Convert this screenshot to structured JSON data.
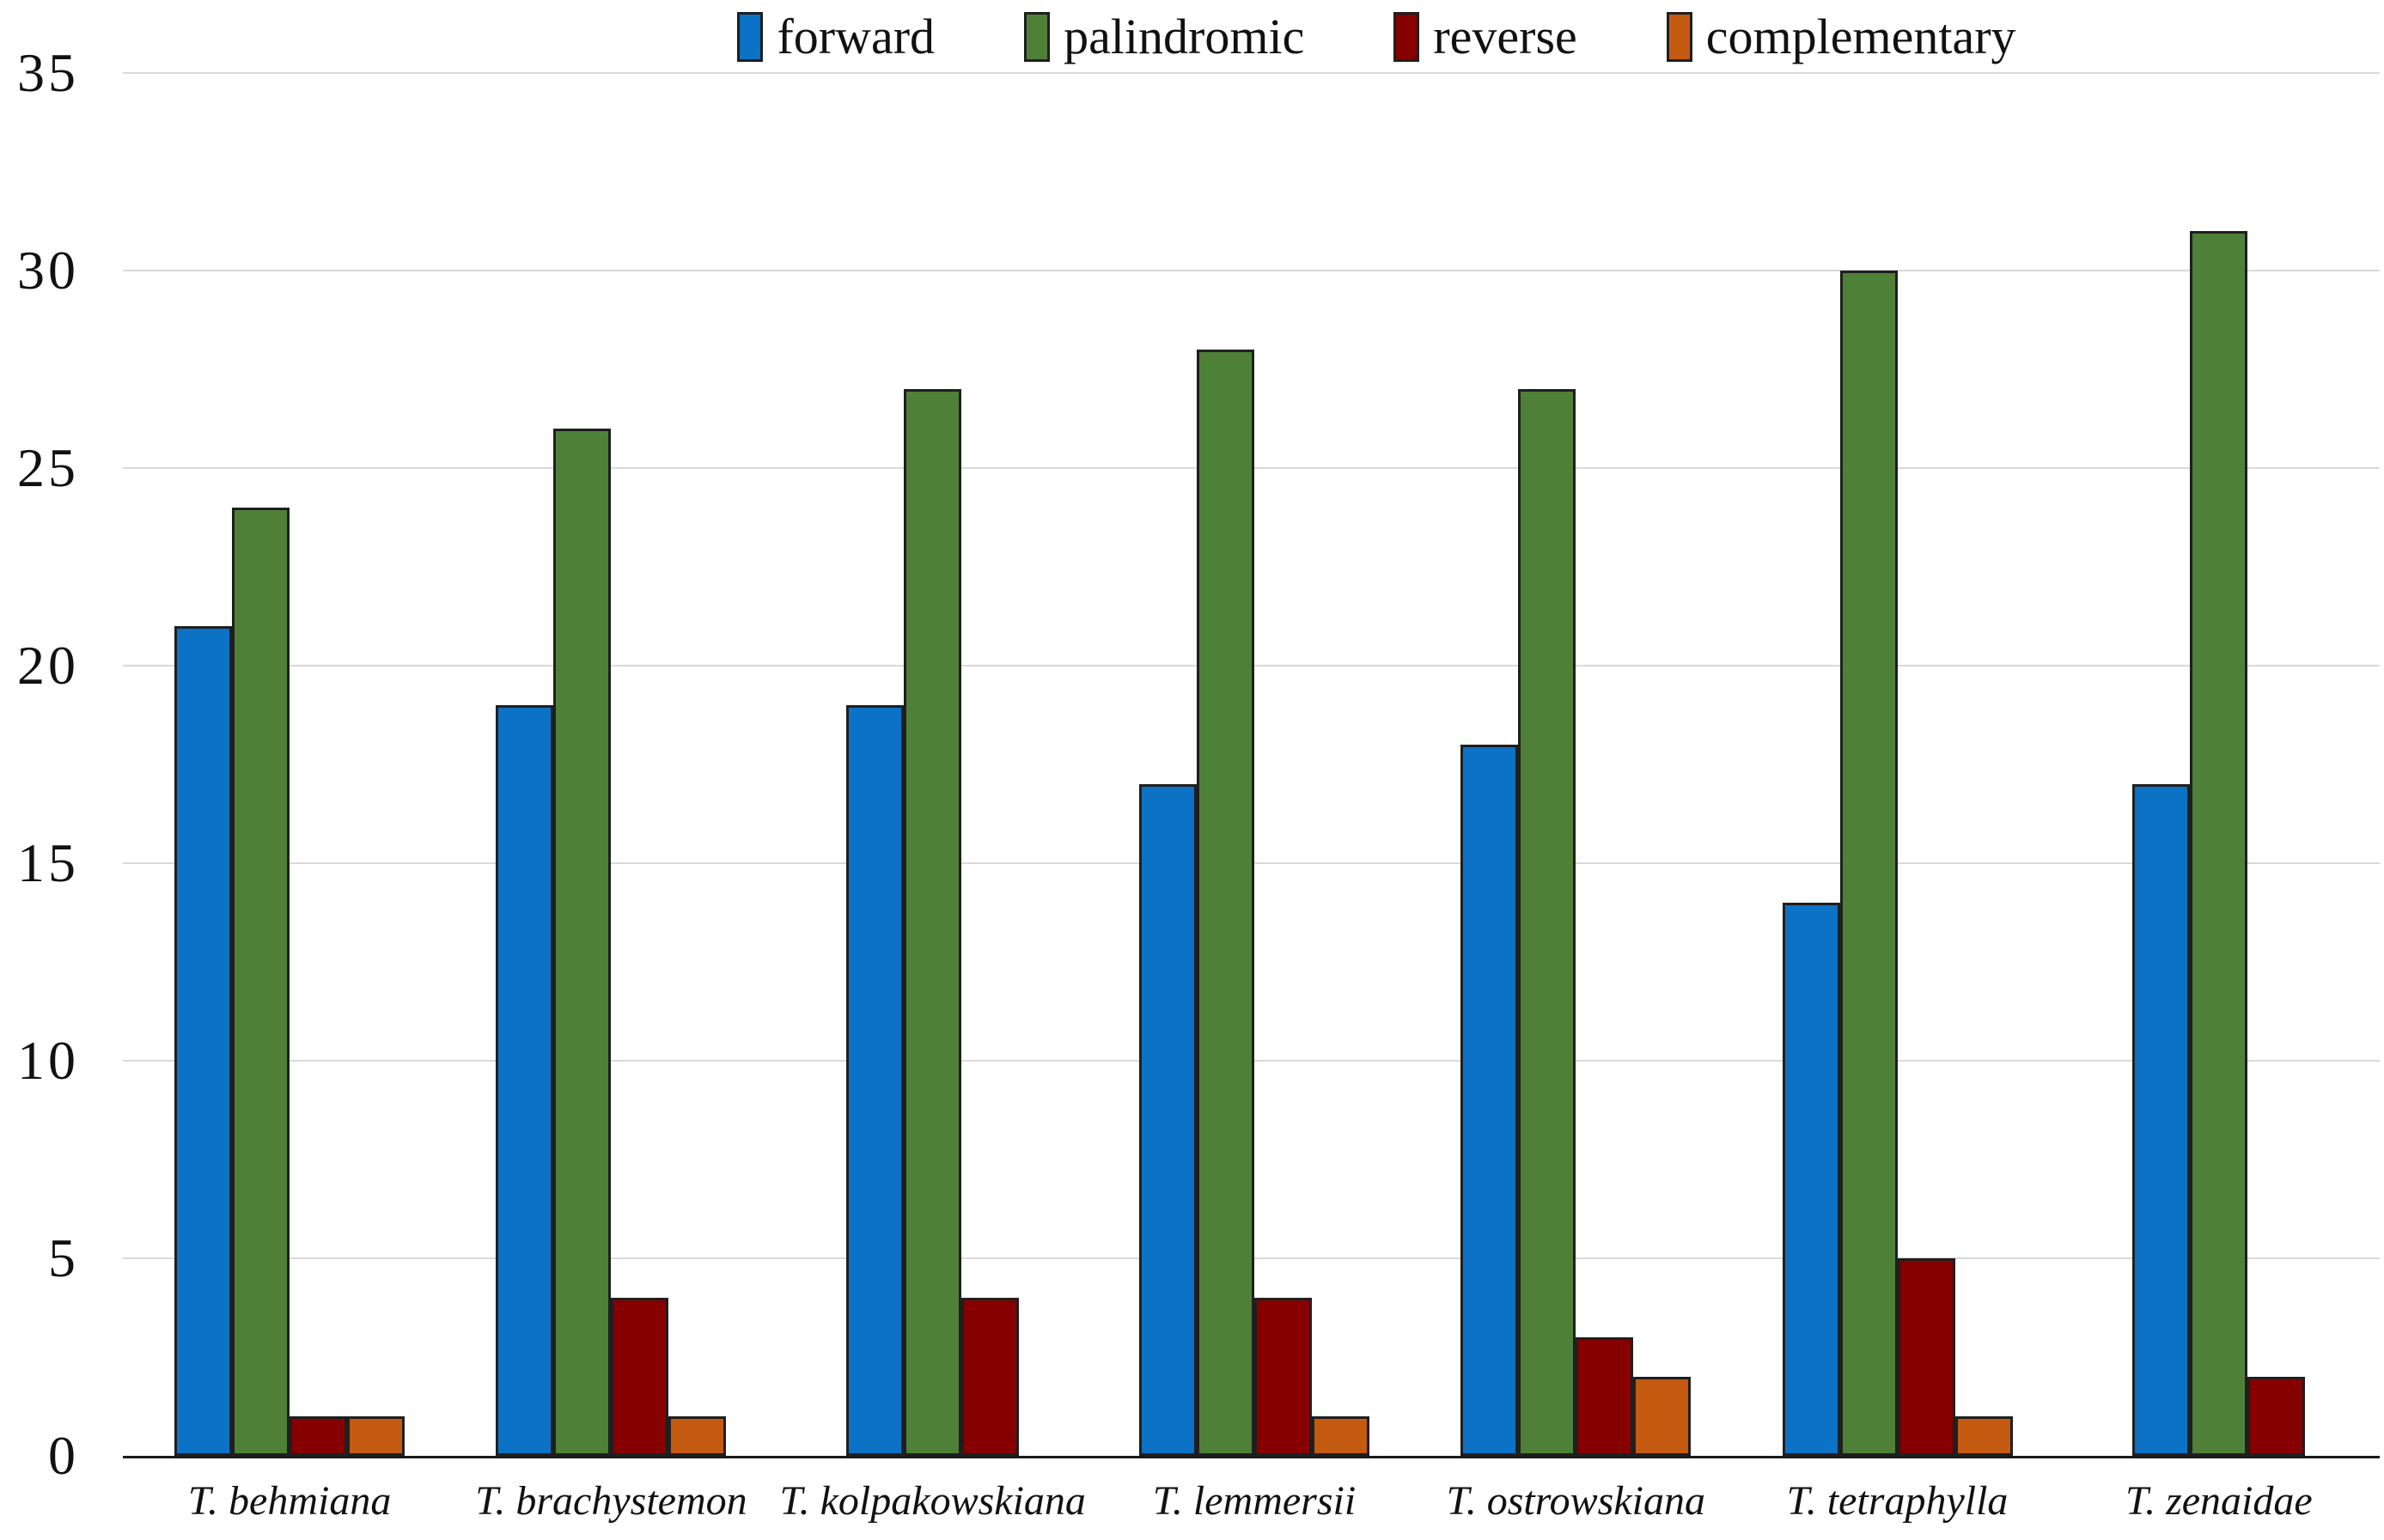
{
  "chart_data": {
    "type": "bar",
    "title": "",
    "categories": [
      "T. behmiana",
      "T. brachystemon",
      "T. kolpakowskiana",
      "T. lemmersii",
      "T. ostrowskiana",
      "T. tetraphylla",
      "T. zenaidae"
    ],
    "series": [
      {
        "name": "forward",
        "color": "#0B72C5",
        "values": [
          21,
          19,
          19,
          17,
          18,
          14,
          17
        ]
      },
      {
        "name": "palindromic",
        "color": "#4F8037",
        "values": [
          24,
          26,
          27,
          28,
          27,
          30,
          31
        ]
      },
      {
        "name": "reverse",
        "color": "#860000",
        "values": [
          1,
          4,
          4,
          4,
          3,
          5,
          2
        ]
      },
      {
        "name": "complementary",
        "color": "#C55A11",
        "values": [
          1,
          1,
          0,
          1,
          2,
          1,
          0
        ]
      }
    ],
    "xlabel": "",
    "ylabel": "",
    "ylim": [
      0,
      35
    ],
    "yticks": [
      0,
      5,
      10,
      15,
      20,
      25,
      30,
      35
    ],
    "grid": true,
    "legend_position": "top"
  },
  "colors": {
    "background": "#FFFFFF",
    "gridline": "#D9D9D9",
    "axis_line": "#1A1A1A",
    "bar_border": "#1F1F1F",
    "label_text": "#111111"
  }
}
